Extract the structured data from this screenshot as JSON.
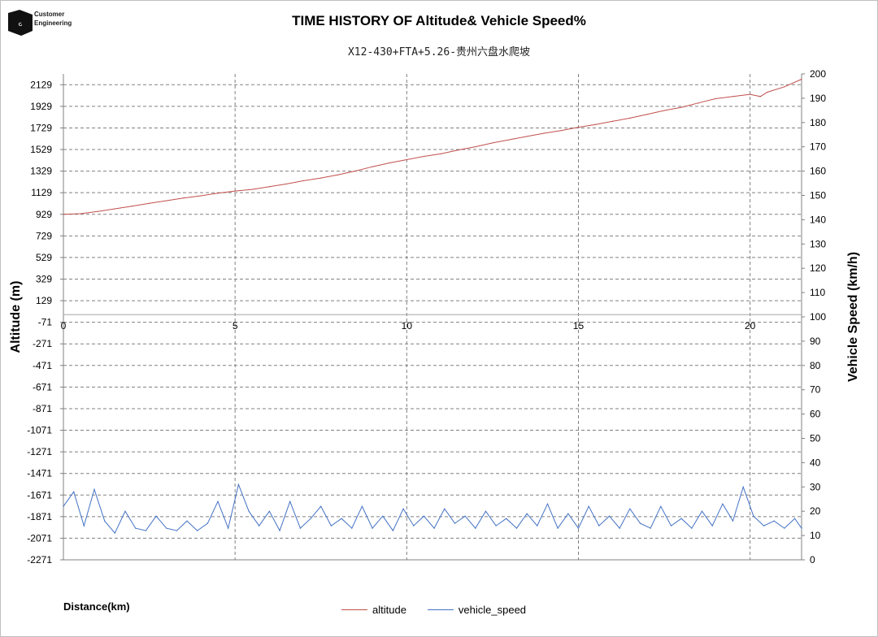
{
  "logo": {
    "line1": "Customer",
    "line2": "Engineering",
    "icon": "cummins-logo"
  },
  "chart_data": {
    "type": "line",
    "title": "TIME HISTORY OF Altitude& Vehicle Speed%",
    "subtitle": "X12-430+FTA+5.26-贵州六盘水爬坡",
    "xlabel": "Distance(km)",
    "ylabel_left": "Altitude (m)",
    "ylabel_right": "Vehicle Speed (km/h)",
    "xlim": [
      0,
      21.5
    ],
    "x_ticks": [
      0,
      5,
      10,
      15,
      20
    ],
    "ylim_left": [
      -2271,
      2229
    ],
    "y_ticks_left": [
      2129,
      1929,
      1729,
      1529,
      1329,
      1129,
      929,
      729,
      529,
      329,
      129,
      -71,
      -271,
      -471,
      -671,
      -871,
      -1071,
      -1271,
      -1471,
      -1671,
      -1871,
      -2071,
      -2271
    ],
    "ylim_right": [
      0,
      200
    ],
    "y_ticks_right": [
      200,
      190,
      180,
      170,
      160,
      150,
      140,
      130,
      120,
      110,
      100,
      90,
      80,
      70,
      60,
      50,
      40,
      30,
      20,
      10,
      0
    ],
    "grid": true,
    "legend_position": "bottom-center",
    "colors": {
      "altitude": "#c0504d",
      "vehicle_speed": "#4472c4",
      "grid": "#808080"
    },
    "series": [
      {
        "name": "altitude",
        "axis": "left",
        "x": [
          0,
          0.5,
          1,
          1.5,
          2,
          2.5,
          3,
          3.5,
          4,
          4.5,
          5,
          5.5,
          6,
          6.5,
          7,
          7.5,
          8,
          8.5,
          9,
          9.5,
          10,
          10.5,
          11,
          11.5,
          12,
          12.5,
          13,
          13.5,
          14,
          14.5,
          15,
          15.5,
          16,
          16.5,
          17,
          17.5,
          18,
          18.5,
          19,
          19.5,
          20,
          20.3,
          20.5,
          21,
          21.5
        ],
        "values": [
          929,
          935,
          955,
          980,
          1005,
          1030,
          1055,
          1080,
          1100,
          1125,
          1145,
          1160,
          1185,
          1210,
          1240,
          1265,
          1295,
          1330,
          1370,
          1405,
          1435,
          1465,
          1490,
          1525,
          1555,
          1590,
          1620,
          1650,
          1680,
          1705,
          1735,
          1760,
          1790,
          1820,
          1855,
          1890,
          1920,
          1960,
          2000,
          2020,
          2040,
          2020,
          2060,
          2110,
          2180
        ]
      },
      {
        "name": "vehicle_speed",
        "axis": "right",
        "x": [
          0,
          0.3,
          0.6,
          0.9,
          1.2,
          1.5,
          1.8,
          2.1,
          2.4,
          2.7,
          3.0,
          3.3,
          3.6,
          3.9,
          4.2,
          4.5,
          4.8,
          5.1,
          5.4,
          5.7,
          6.0,
          6.3,
          6.6,
          6.9,
          7.2,
          7.5,
          7.8,
          8.1,
          8.4,
          8.7,
          9.0,
          9.3,
          9.6,
          9.9,
          10.2,
          10.5,
          10.8,
          11.1,
          11.4,
          11.7,
          12.0,
          12.3,
          12.6,
          12.9,
          13.2,
          13.5,
          13.8,
          14.1,
          14.4,
          14.7,
          15.0,
          15.3,
          15.6,
          15.9,
          16.2,
          16.5,
          16.8,
          17.1,
          17.4,
          17.7,
          18.0,
          18.3,
          18.6,
          18.9,
          19.2,
          19.5,
          19.8,
          20.1,
          20.4,
          20.7,
          21.0,
          21.3,
          21.5
        ],
        "values": [
          22,
          28,
          14,
          29,
          16,
          11,
          20,
          13,
          12,
          18,
          13,
          12,
          16,
          12,
          15,
          24,
          13,
          31,
          20,
          14,
          20,
          12,
          24,
          13,
          17,
          22,
          14,
          17,
          13,
          22,
          13,
          18,
          12,
          21,
          14,
          18,
          13,
          21,
          15,
          18,
          13,
          20,
          14,
          17,
          13,
          19,
          14,
          23,
          13,
          19,
          13,
          22,
          14,
          18,
          13,
          21,
          15,
          13,
          22,
          14,
          17,
          13,
          20,
          14,
          23,
          16,
          30,
          18,
          14,
          16,
          13,
          17,
          13
        ]
      }
    ]
  }
}
